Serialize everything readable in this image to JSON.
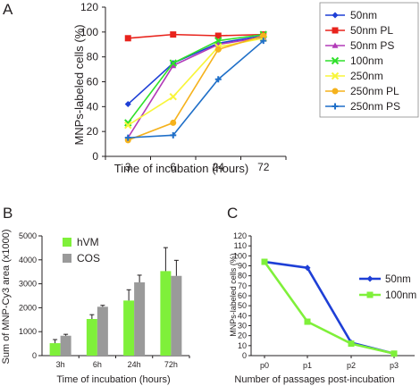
{
  "chart_data": [
    {
      "panel": "A",
      "type": "line",
      "xlabel": "Time of incubation (hours)",
      "ylabel": "MNPs-labeled cells (%)",
      "categories": [
        "3",
        "6",
        "24",
        "72"
      ],
      "ylim": [
        0,
        120
      ],
      "yticks": [
        0,
        20,
        40,
        60,
        80,
        100,
        120
      ],
      "grid": false,
      "legend_position": "right",
      "series": [
        {
          "name": "50nm",
          "color": "#1e3fd6",
          "marker": "diamond",
          "values": [
            42,
            75,
            91,
            97
          ]
        },
        {
          "name": "50nm PL",
          "color": "#e8231c",
          "marker": "square",
          "values": [
            95,
            98,
            97,
            98
          ]
        },
        {
          "name": "50nm PS",
          "color": "#b23bb8",
          "marker": "triangle",
          "values": [
            15,
            73,
            90,
            96
          ]
        },
        {
          "name": "100nm",
          "color": "#2fe02a",
          "marker": "x",
          "values": [
            27,
            75,
            93,
            98
          ]
        },
        {
          "name": "250nm",
          "color": "#f8f53a",
          "marker": "x",
          "values": [
            25,
            48,
            88,
            95
          ]
        },
        {
          "name": "250nm PL",
          "color": "#f5b21c",
          "marker": "circle",
          "values": [
            13,
            27,
            86,
            97
          ]
        },
        {
          "name": "250nm PS",
          "color": "#1f6fc8",
          "marker": "plus",
          "values": [
            15,
            17,
            62,
            93
          ]
        }
      ]
    },
    {
      "panel": "B",
      "type": "bar",
      "xlabel": "Time of incubation (hours)",
      "ylabel": "Sum of MNP-Cy3 area (x1000)",
      "categories": [
        "3h",
        "6h",
        "24h",
        "72h"
      ],
      "ylim": [
        0,
        5000
      ],
      "yticks": [
        0,
        1000,
        2000,
        3000,
        4000,
        5000
      ],
      "grid": false,
      "legend_position": "top-left",
      "series": [
        {
          "name": "hVM",
          "color": "#7ff03a",
          "values": [
            520,
            1530,
            2300,
            3530
          ],
          "errors": [
            150,
            180,
            450,
            980
          ]
        },
        {
          "name": "COS",
          "color": "#9a9a9a",
          "values": [
            830,
            2040,
            3060,
            3330
          ],
          "errors": [
            60,
            60,
            300,
            650
          ]
        }
      ]
    },
    {
      "panel": "C",
      "type": "line",
      "xlabel": "Number of passages post-incubation",
      "ylabel": "MNPs-labeled cells (%)",
      "categories": [
        "p0",
        "p1",
        "p2",
        "p3"
      ],
      "ylim": [
        0,
        120
      ],
      "yticks": [
        0,
        10,
        20,
        30,
        40,
        50,
        60,
        70,
        80,
        90,
        100,
        110,
        120
      ],
      "grid": false,
      "legend_position": "right",
      "series": [
        {
          "name": "50nm",
          "color": "#1e3fd6",
          "marker": "diamond",
          "values": [
            94,
            88,
            13,
            2
          ]
        },
        {
          "name": "100nm",
          "color": "#7ff03a",
          "marker": "square",
          "values": [
            94,
            34,
            12,
            2
          ]
        }
      ]
    }
  ]
}
